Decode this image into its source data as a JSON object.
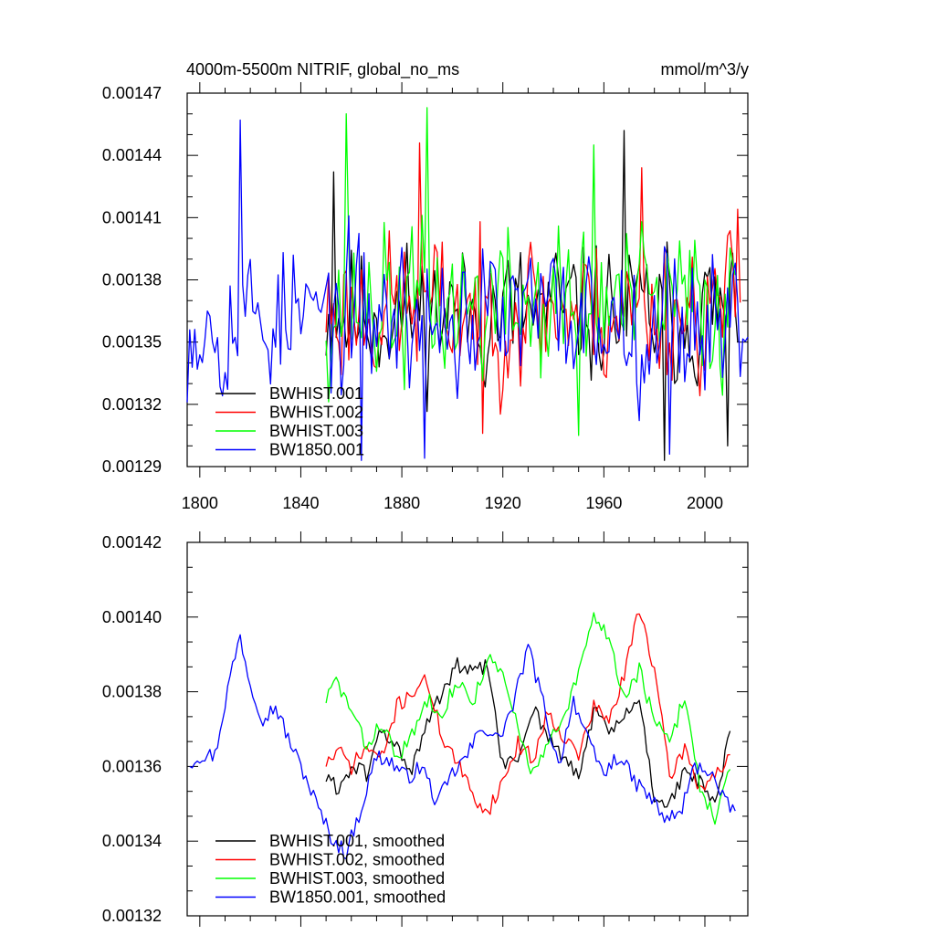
{
  "colors": {
    "black": "#000000",
    "red": "#ff0000",
    "green": "#00ff00",
    "blue": "#0000ff"
  },
  "chart_data": [
    {
      "type": "line",
      "title_left": "4000m-5500m NITRIF, global_no_ms",
      "title_right": "mmol/m^3/y",
      "xlim": [
        1795,
        2017
      ],
      "ylim": [
        0.00129,
        0.00147
      ],
      "yticks": [
        "0.00129",
        "0.00132",
        "0.00135",
        "0.00138",
        "0.00141",
        "0.00144",
        "0.00147"
      ],
      "xticks": [
        "1800",
        "1840",
        "1880",
        "1920",
        "1960",
        "2000"
      ],
      "legend": [
        "BWHIST.001",
        "BWHIST.002",
        "BWHIST.003",
        "BW1850.001"
      ],
      "legend_position": "bottom-left",
      "series": [
        {
          "name": "BWHIST.001",
          "color": "black",
          "start": 1850,
          "end": 2013,
          "mean": 0.001364,
          "amp": 2.6e-05,
          "seed": 11,
          "peaks": [
            [
              1853,
              0.001432
            ],
            [
              1968,
              0.001452
            ],
            [
              1984,
              0.001293
            ],
            [
              2009,
              0.0013
            ]
          ]
        },
        {
          "name": "BWHIST.002",
          "color": "red",
          "start": 1850,
          "end": 2014,
          "mean": 0.001366,
          "amp": 2.8e-05,
          "seed": 23,
          "peaks": [
            [
              1887,
              0.001446
            ],
            [
              1912,
              0.001306
            ],
            [
              1975,
              0.001434
            ],
            [
              2013,
              0.001414
            ]
          ]
        },
        {
          "name": "BWHIST.003",
          "color": "green",
          "start": 1850,
          "end": 2012,
          "mean": 0.001368,
          "amp": 3e-05,
          "seed": 37,
          "peaks": [
            [
              1858,
              0.00146
            ],
            [
              1890,
              0.001463
            ],
            [
              1956,
              0.001445
            ],
            [
              1950,
              0.001305
            ]
          ]
        },
        {
          "name": "BW1850.001",
          "color": "blue",
          "start": 1795,
          "end": 2017,
          "mean": 0.001362,
          "amp": 2.8e-05,
          "seed": 53,
          "peaks": [
            [
              1816,
              0.001457
            ],
            [
              1889,
              0.001294
            ],
            [
              1864,
              0.001293
            ],
            [
              1986,
              0.001296
            ],
            [
              1795,
              0.001321
            ]
          ]
        }
      ]
    },
    {
      "type": "line",
      "xlim": [
        1795,
        2017
      ],
      "ylim": [
        0.00132,
        0.00142
      ],
      "yticks": [
        "0.00132",
        "0.00134",
        "0.00136",
        "0.00138",
        "0.00140",
        "0.00142"
      ],
      "legend": [
        "BWHIST.001, smoothed",
        "BWHIST.002, smoothed",
        "BWHIST.003, smoothed",
        "BW1850.001, smoothed"
      ],
      "legend_position": "bottom-left",
      "series": [
        {
          "name": "BWHIST.001, smoothed",
          "color": "black",
          "seed": 61,
          "noise": 2.2e-06,
          "x": [
            1850,
            1855,
            1860,
            1866,
            1872,
            1878,
            1884,
            1890,
            1896,
            1902,
            1908,
            1914,
            1920,
            1926,
            1932,
            1938,
            1944,
            1950,
            1956,
            1962,
            1968,
            1974,
            1980,
            1986,
            1992,
            1998,
            2004,
            2010
          ],
          "y": [
            0.001357,
            0.001354,
            0.00136,
            0.001358,
            0.00137,
            0.001365,
            0.001359,
            0.001371,
            0.00138,
            0.001387,
            0.001385,
            0.001387,
            0.00136,
            0.001362,
            0.001376,
            0.001368,
            0.001362,
            0.001357,
            0.001375,
            0.001369,
            0.001373,
            0.001378,
            0.001352,
            0.00135,
            0.001358,
            0.001356,
            0.001349,
            0.001369
          ]
        },
        {
          "name": "BWHIST.002, smoothed",
          "color": "red",
          "seed": 71,
          "noise": 2.2e-06,
          "x": [
            1850,
            1855,
            1860,
            1866,
            1872,
            1878,
            1884,
            1890,
            1896,
            1902,
            1908,
            1914,
            1920,
            1926,
            1932,
            1938,
            1944,
            1950,
            1956,
            1962,
            1968,
            1974,
            1980,
            1986,
            1992,
            1998,
            2004,
            2010
          ],
          "y": [
            0.001361,
            0.001364,
            0.00136,
            0.001365,
            0.001362,
            0.001376,
            0.00138,
            0.001383,
            0.001368,
            0.001361,
            0.001352,
            0.001348,
            0.001356,
            0.001366,
            0.001362,
            0.001375,
            0.001368,
            0.001363,
            0.001376,
            0.001372,
            0.001384,
            0.001403,
            0.001386,
            0.001357,
            0.001365,
            0.001354,
            0.001358,
            0.001362
          ]
        },
        {
          "name": "BWHIST.003, smoothed",
          "color": "green",
          "seed": 83,
          "noise": 2.2e-06,
          "x": [
            1850,
            1854,
            1860,
            1866,
            1872,
            1878,
            1884,
            1890,
            1896,
            1902,
            1908,
            1914,
            1920,
            1926,
            1932,
            1938,
            1944,
            1950,
            1956,
            1962,
            1968,
            1974,
            1980,
            1986,
            1992,
            1998,
            2004,
            2010
          ],
          "y": [
            0.001378,
            0.001383,
            0.001375,
            0.001365,
            0.001372,
            0.001362,
            0.001368,
            0.001378,
            0.001375,
            0.001383,
            0.001377,
            0.001389,
            0.001384,
            0.00137,
            0.001358,
            0.001366,
            0.001372,
            0.001385,
            0.0014,
            0.001395,
            0.001378,
            0.001386,
            0.001372,
            0.001366,
            0.001379,
            0.001355,
            0.001346,
            0.001359
          ]
        },
        {
          "name": "BW1850.001, smoothed",
          "color": "blue",
          "seed": 97,
          "noise": 2.2e-06,
          "x": [
            1796,
            1800,
            1806,
            1812,
            1816,
            1820,
            1825,
            1830,
            1836,
            1842,
            1848,
            1853,
            1858,
            1864,
            1870,
            1876,
            1882,
            1888,
            1894,
            1900,
            1906,
            1912,
            1918,
            1924,
            1930,
            1936,
            1942,
            1948,
            1954,
            1960,
            1966,
            1972,
            1978,
            1984,
            1990,
            1996,
            2002,
            2008,
            2012
          ],
          "y": [
            0.001361,
            0.001363,
            0.001363,
            0.001384,
            0.001395,
            0.001382,
            0.001373,
            0.001376,
            0.001366,
            0.001357,
            0.001347,
            0.00134,
            0.001337,
            0.001349,
            0.001363,
            0.001361,
            0.001357,
            0.00136,
            0.00135,
            0.001358,
            0.001363,
            0.001371,
            0.001367,
            0.001376,
            0.001392,
            0.001377,
            0.00136,
            0.001378,
            0.001366,
            0.001358,
            0.001363,
            0.001356,
            0.001352,
            0.001346,
            0.001347,
            0.00136,
            0.001359,
            0.00135,
            0.001348
          ]
        }
      ]
    }
  ]
}
